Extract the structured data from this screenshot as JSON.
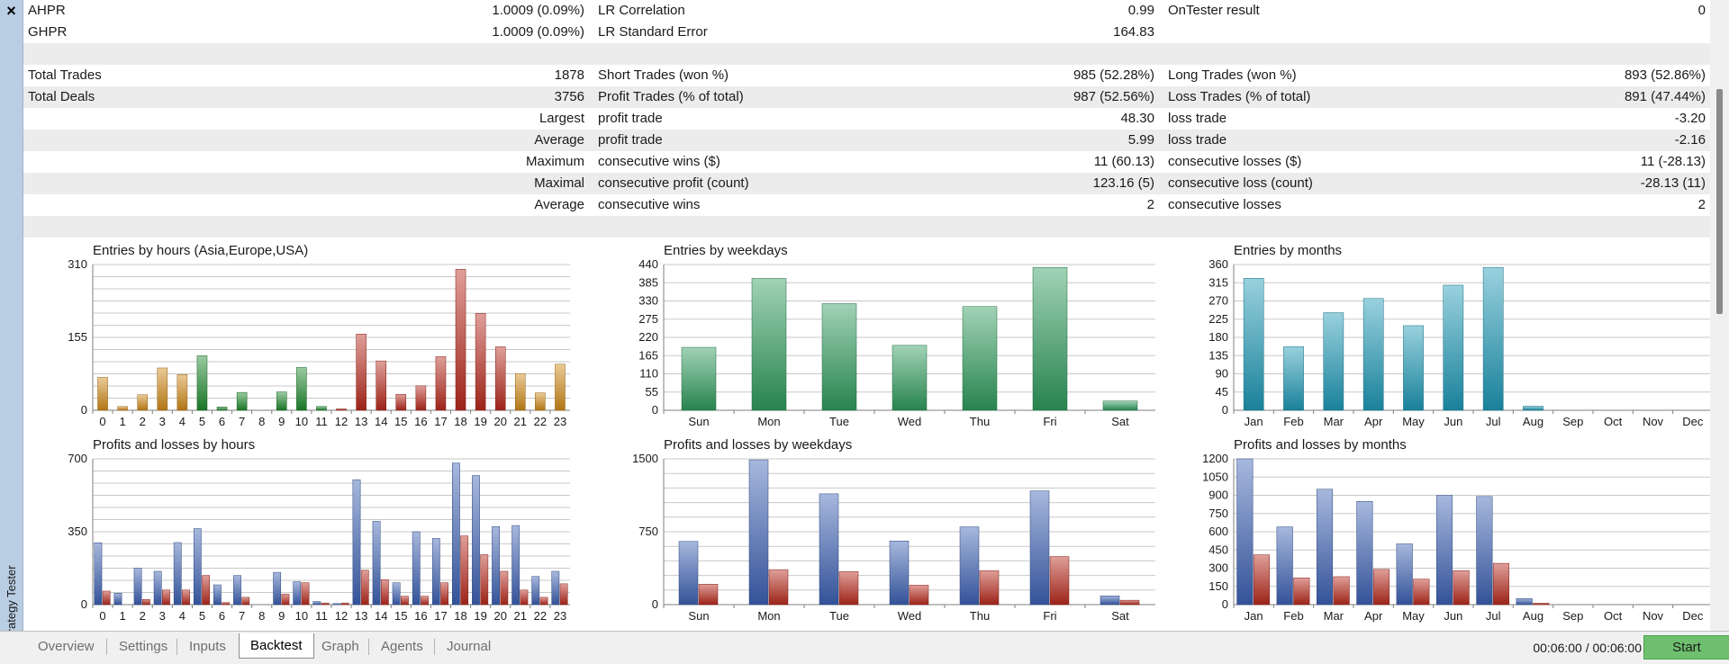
{
  "window": {
    "side_label": "Strategy Tester",
    "close_icon": "×"
  },
  "stats_rows": [
    {
      "alt": false,
      "c1": {
        "label": "AHPR",
        "value": "1.0009 (0.09%)"
      },
      "c2": {
        "label": "LR Correlation",
        "value": "0.99"
      },
      "c3": {
        "label": "OnTester result",
        "value": "0"
      }
    },
    {
      "alt": false,
      "c1": {
        "label": "GHPR",
        "value": "1.0009 (0.09%)"
      },
      "c2": {
        "label": "LR Standard Error",
        "value": "164.83"
      },
      "c3": {
        "label": "",
        "value": ""
      }
    },
    {
      "alt": true,
      "c1": {
        "label": "",
        "value": ""
      },
      "c2": {
        "label": "",
        "value": ""
      },
      "c3": {
        "label": "",
        "value": ""
      }
    },
    {
      "alt": false,
      "c1": {
        "label": "Total Trades",
        "value": "1878"
      },
      "c2": {
        "label": "Short Trades (won %)",
        "value": "985 (52.28%)"
      },
      "c3": {
        "label": "Long Trades (won %)",
        "value": "893 (52.86%)"
      }
    },
    {
      "alt": true,
      "c1": {
        "label": "Total Deals",
        "value": "3756"
      },
      "c2": {
        "label": "Profit Trades (% of total)",
        "value": "987 (52.56%)"
      },
      "c3": {
        "label": "Loss Trades (% of total)",
        "value": "891 (47.44%)"
      }
    },
    {
      "alt": false,
      "right_label": "Largest",
      "c2": {
        "label": "profit trade",
        "value": "48.30"
      },
      "c3": {
        "label": "loss trade",
        "value": "-3.20"
      }
    },
    {
      "alt": true,
      "right_label": "Average",
      "c2": {
        "label": "profit trade",
        "value": "5.99"
      },
      "c3": {
        "label": "loss trade",
        "value": "-2.16"
      }
    },
    {
      "alt": false,
      "right_label": "Maximum",
      "c2": {
        "label": "consecutive wins ($)",
        "value": "11 (60.13)"
      },
      "c3": {
        "label": "consecutive losses ($)",
        "value": "11 (-28.13)"
      }
    },
    {
      "alt": true,
      "right_label": "Maximal",
      "c2": {
        "label": "consecutive profit (count)",
        "value": "123.16 (5)"
      },
      "c3": {
        "label": "consecutive loss (count)",
        "value": "-28.13 (11)"
      }
    },
    {
      "alt": false,
      "right_label": "Average",
      "c2": {
        "label": "consecutive wins",
        "value": "2"
      },
      "c3": {
        "label": "consecutive losses",
        "value": "2"
      }
    },
    {
      "alt": true,
      "c1": {
        "label": "",
        "value": ""
      },
      "c2": {
        "label": "",
        "value": ""
      },
      "c3": {
        "label": "",
        "value": ""
      }
    }
  ],
  "chart_data": [
    {
      "id": "entries-hours",
      "type": "bar",
      "title": "Entries by hours (Asia,Europe,USA)",
      "ylim": [
        0,
        310
      ],
      "yticks": [
        "0",
        "155",
        "310"
      ],
      "grid_lines": 12,
      "categories": [
        "0",
        "1",
        "2",
        "3",
        "4",
        "5",
        "6",
        "7",
        "8",
        "9",
        "10",
        "11",
        "12",
        "13",
        "14",
        "15",
        "16",
        "17",
        "18",
        "19",
        "20",
        "21",
        "22",
        "23"
      ],
      "values": [
        70,
        8,
        33,
        90,
        76,
        116,
        7,
        38,
        0,
        39,
        91,
        8,
        3,
        162,
        105,
        34,
        52,
        114,
        300,
        206,
        135,
        78,
        37,
        98
      ],
      "colors": {
        "asia": "#d08a17",
        "europe": "#1e8a2e",
        "usa": "#b8291c"
      },
      "bar_session": [
        "asia",
        "asia",
        "asia",
        "asia",
        "asia",
        "europe",
        "europe",
        "europe",
        "europe",
        "europe",
        "europe",
        "europe",
        "usa",
        "usa",
        "usa",
        "usa",
        "usa",
        "usa",
        "usa",
        "usa",
        "usa",
        "asia",
        "asia",
        "asia"
      ]
    },
    {
      "id": "entries-weekdays",
      "type": "bar",
      "title": "Entries by weekdays",
      "ylim": [
        0,
        440
      ],
      "yticks": [
        "0",
        "55",
        "110",
        "165",
        "220",
        "275",
        "330",
        "385",
        "440"
      ],
      "categories": [
        "Sun",
        "Mon",
        "Tue",
        "Wed",
        "Thu",
        "Fri",
        "Sat"
      ],
      "values": [
        190,
        398,
        322,
        196,
        313,
        431,
        28
      ],
      "color": "#2e9a5c"
    },
    {
      "id": "entries-months",
      "type": "bar",
      "title": "Entries by months",
      "ylim": [
        0,
        360
      ],
      "yticks": [
        "0",
        "45",
        "90",
        "135",
        "180",
        "225",
        "270",
        "315",
        "360"
      ],
      "categories": [
        "Jan",
        "Feb",
        "Mar",
        "Apr",
        "May",
        "Jun",
        "Jul",
        "Aug",
        "Sep",
        "Oct",
        "Nov",
        "Dec"
      ],
      "values": [
        326,
        157,
        241,
        276,
        209,
        309,
        353,
        10,
        0,
        0,
        0,
        0
      ],
      "color": "#1d98b5"
    },
    {
      "id": "pl-hours",
      "type": "bar",
      "title": "Profits and losses by hours",
      "ylim": [
        0,
        700
      ],
      "yticks": [
        "0",
        "350",
        "700"
      ],
      "grid_lines": 12,
      "categories": [
        "0",
        "1",
        "2",
        "3",
        "4",
        "5",
        "6",
        "7",
        "8",
        "9",
        "10",
        "11",
        "12",
        "13",
        "14",
        "15",
        "16",
        "17",
        "18",
        "19",
        "20",
        "21",
        "22",
        "23"
      ],
      "series": [
        {
          "values": [
            297,
            55,
            175,
            160,
            298,
            365,
            95,
            140,
            0,
            155,
            110,
            15,
            5,
            600,
            400,
            105,
            350,
            318,
            680,
            620,
            375,
            380,
            135,
            160
          ],
          "color": "#3c61b3"
        },
        {
          "values": [
            65,
            0,
            25,
            70,
            70,
            140,
            10,
            35,
            0,
            50,
            105,
            8,
            8,
            165,
            120,
            40,
            40,
            105,
            330,
            240,
            160,
            70,
            35,
            100
          ],
          "color": "#b8291c"
        }
      ]
    },
    {
      "id": "pl-weekdays",
      "type": "bar",
      "title": "Profits and losses by weekdays",
      "ylim": [
        0,
        1500
      ],
      "yticks": [
        "0",
        "750",
        "1500"
      ],
      "grid_lines": 10,
      "categories": [
        "Sun",
        "Mon",
        "Tue",
        "Wed",
        "Thu",
        "Fri",
        "Sat"
      ],
      "series": [
        {
          "values": [
            650,
            1490,
            1140,
            655,
            800,
            1170,
            90
          ],
          "color": "#3c61b3"
        },
        {
          "values": [
            210,
            360,
            340,
            200,
            350,
            495,
            45
          ],
          "color": "#b8291c"
        }
      ]
    },
    {
      "id": "pl-months",
      "type": "bar",
      "title": "Profits and losses by months",
      "ylim": [
        0,
        1200
      ],
      "yticks": [
        "0",
        "150",
        "300",
        "450",
        "600",
        "750",
        "900",
        "1050",
        "1200"
      ],
      "categories": [
        "Jan",
        "Feb",
        "Mar",
        "Apr",
        "May",
        "Jun",
        "Jul",
        "Aug",
        "Sep",
        "Oct",
        "Nov",
        "Dec"
      ],
      "series": [
        {
          "values": [
            1200,
            640,
            950,
            850,
            500,
            900,
            890,
            50,
            0,
            0,
            0,
            0
          ],
          "color": "#3c61b3"
        },
        {
          "values": [
            410,
            220,
            230,
            290,
            210,
            280,
            340,
            12,
            0,
            0,
            0,
            0
          ],
          "color": "#b8291c"
        }
      ]
    }
  ],
  "tabs": [
    {
      "id": "overview",
      "label": "Overview"
    },
    {
      "id": "settings",
      "label": "Settings"
    },
    {
      "id": "inputs",
      "label": "Inputs"
    },
    {
      "id": "backtest",
      "label": "Backtest",
      "active": true
    },
    {
      "id": "graph",
      "label": "Graph"
    },
    {
      "id": "agents",
      "label": "Agents"
    },
    {
      "id": "journal",
      "label": "Journal"
    }
  ],
  "footer": {
    "timer": "00:06:00 / 00:06:00",
    "start_label": "Start"
  }
}
